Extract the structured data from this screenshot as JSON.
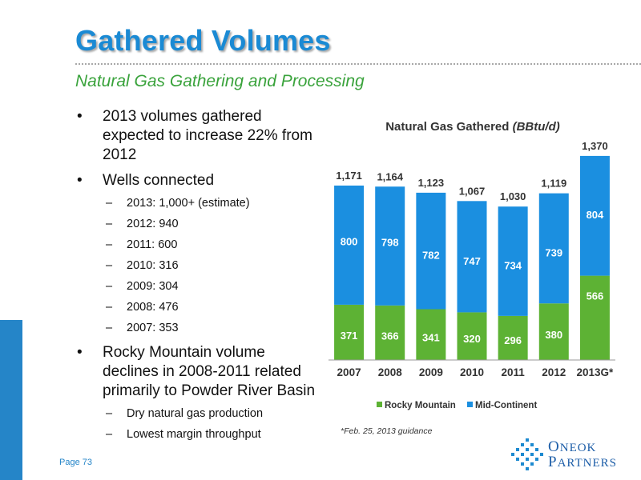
{
  "header": {
    "title": "Gathered Volumes",
    "subtitle": "Natural Gas Gathering and Processing"
  },
  "bullets": [
    {
      "text": "2013 volumes gathered expected to increase 22% from 2012",
      "subs": []
    },
    {
      "text": "Wells connected",
      "subs": [
        "2013: 1,000+ (estimate)",
        "2012: 940",
        "2011: 600",
        "2010: 316",
        "2009: 304",
        "2008: 476",
        "2007: 353"
      ]
    },
    {
      "text": "Rocky Mountain volume declines in 2008-2011 related primarily to Powder River Basin",
      "subs": [
        "Dry natural gas production",
        "Lowest margin throughput"
      ]
    }
  ],
  "bullet_glyph": "•",
  "dash_glyph": "–",
  "footer": {
    "page": "Page 73",
    "logo_line1_big": "O",
    "logo_line1": "NEOK",
    "logo_line2_big": "P",
    "logo_line2": "ARTNERS"
  },
  "chart_title": {
    "main": "Natural Gas Gathered ",
    "unit": "(BBtu/d)"
  },
  "footnote": "*Feb. 25, 2013 guidance",
  "colors": {
    "title": "#1a8ad4",
    "subtitle": "#3aa33c",
    "rocky_mountain": "#5db234",
    "mid_continent": "#1b8fe0",
    "accent_bar": "#2585c8"
  },
  "chart_data": {
    "type": "bar",
    "stacked": true,
    "title": "Natural Gas Gathered (BBtu/d)",
    "categories": [
      "2007",
      "2008",
      "2009",
      "2010",
      "2011",
      "2012",
      "2013G*"
    ],
    "series": [
      {
        "name": "Rocky Mountain",
        "values": [
          371,
          366,
          341,
          320,
          296,
          380,
          566
        ]
      },
      {
        "name": "Mid-Continent",
        "values": [
          800,
          798,
          782,
          747,
          734,
          739,
          804
        ]
      }
    ],
    "totals": [
      "1,171",
      "1,164",
      "1,123",
      "1,067",
      "1,030",
      "1,119",
      "1,370"
    ],
    "ylim": [
      0,
      1450
    ],
    "legend_placement": "bottom",
    "grid": false
  }
}
